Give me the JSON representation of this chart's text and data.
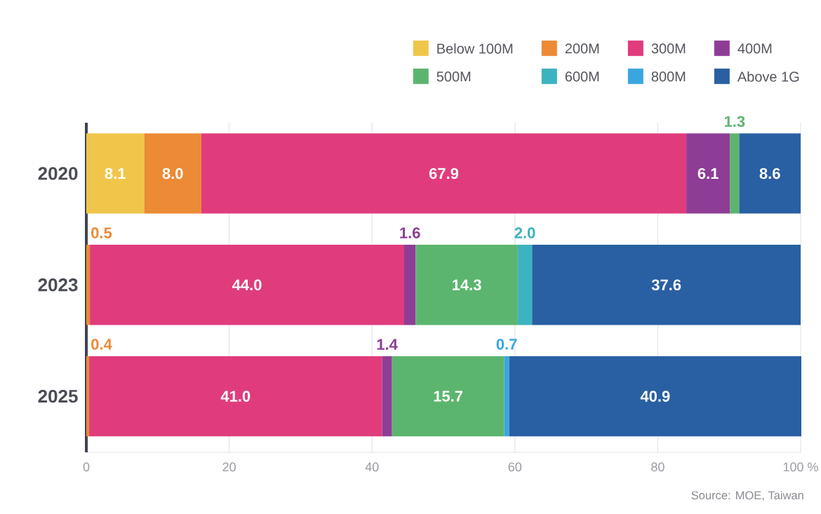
{
  "chart_data": {
    "type": "bar",
    "orientation": "horizontal",
    "stacked": true,
    "categories": [
      "2020",
      "2023",
      "2025"
    ],
    "series": [
      {
        "name": "Below 100M",
        "color": "#f0c64a",
        "values": [
          8.1,
          null,
          null
        ],
        "value_labels": [
          "8.1",
          null,
          null
        ]
      },
      {
        "name": "200M",
        "color": "#ec8a35",
        "values": [
          8.0,
          0.5,
          0.4
        ],
        "value_labels": [
          "8.0",
          "0.5",
          "0.4"
        ]
      },
      {
        "name": "300M",
        "color": "#e03c7c",
        "values": [
          67.9,
          44.0,
          41.0
        ],
        "value_labels": [
          "67.9",
          "44.0",
          "41.0"
        ]
      },
      {
        "name": "400M",
        "color": "#8e3d96",
        "values": [
          6.1,
          1.6,
          1.4
        ],
        "value_labels": [
          "6.1",
          "1.6",
          "1.4"
        ]
      },
      {
        "name": "500M",
        "color": "#5cb56e",
        "values": [
          1.3,
          14.3,
          15.7
        ],
        "value_labels": [
          "1.3",
          "14.3",
          "15.7"
        ]
      },
      {
        "name": "600M",
        "color": "#3cb3c0",
        "values": [
          null,
          2.0,
          null
        ],
        "value_labels": [
          null,
          "2.0",
          null
        ]
      },
      {
        "name": "800M",
        "color": "#3aa6e0",
        "values": [
          null,
          null,
          0.7
        ],
        "value_labels": [
          null,
          null,
          "0.7"
        ]
      },
      {
        "name": "Above 1G",
        "color": "#2960a3",
        "values": [
          8.6,
          37.6,
          40.9
        ],
        "value_labels": [
          "8.6",
          "37.6",
          "40.9"
        ]
      }
    ],
    "xlim": [
      0,
      100.1
    ],
    "xticks": [
      0,
      20,
      40,
      60,
      80,
      {
        "value": 100,
        "label": "100 %"
      }
    ],
    "grid": "x",
    "legend": "top right",
    "annotations": [
      "Source: MOE, Taiwan"
    ]
  }
}
